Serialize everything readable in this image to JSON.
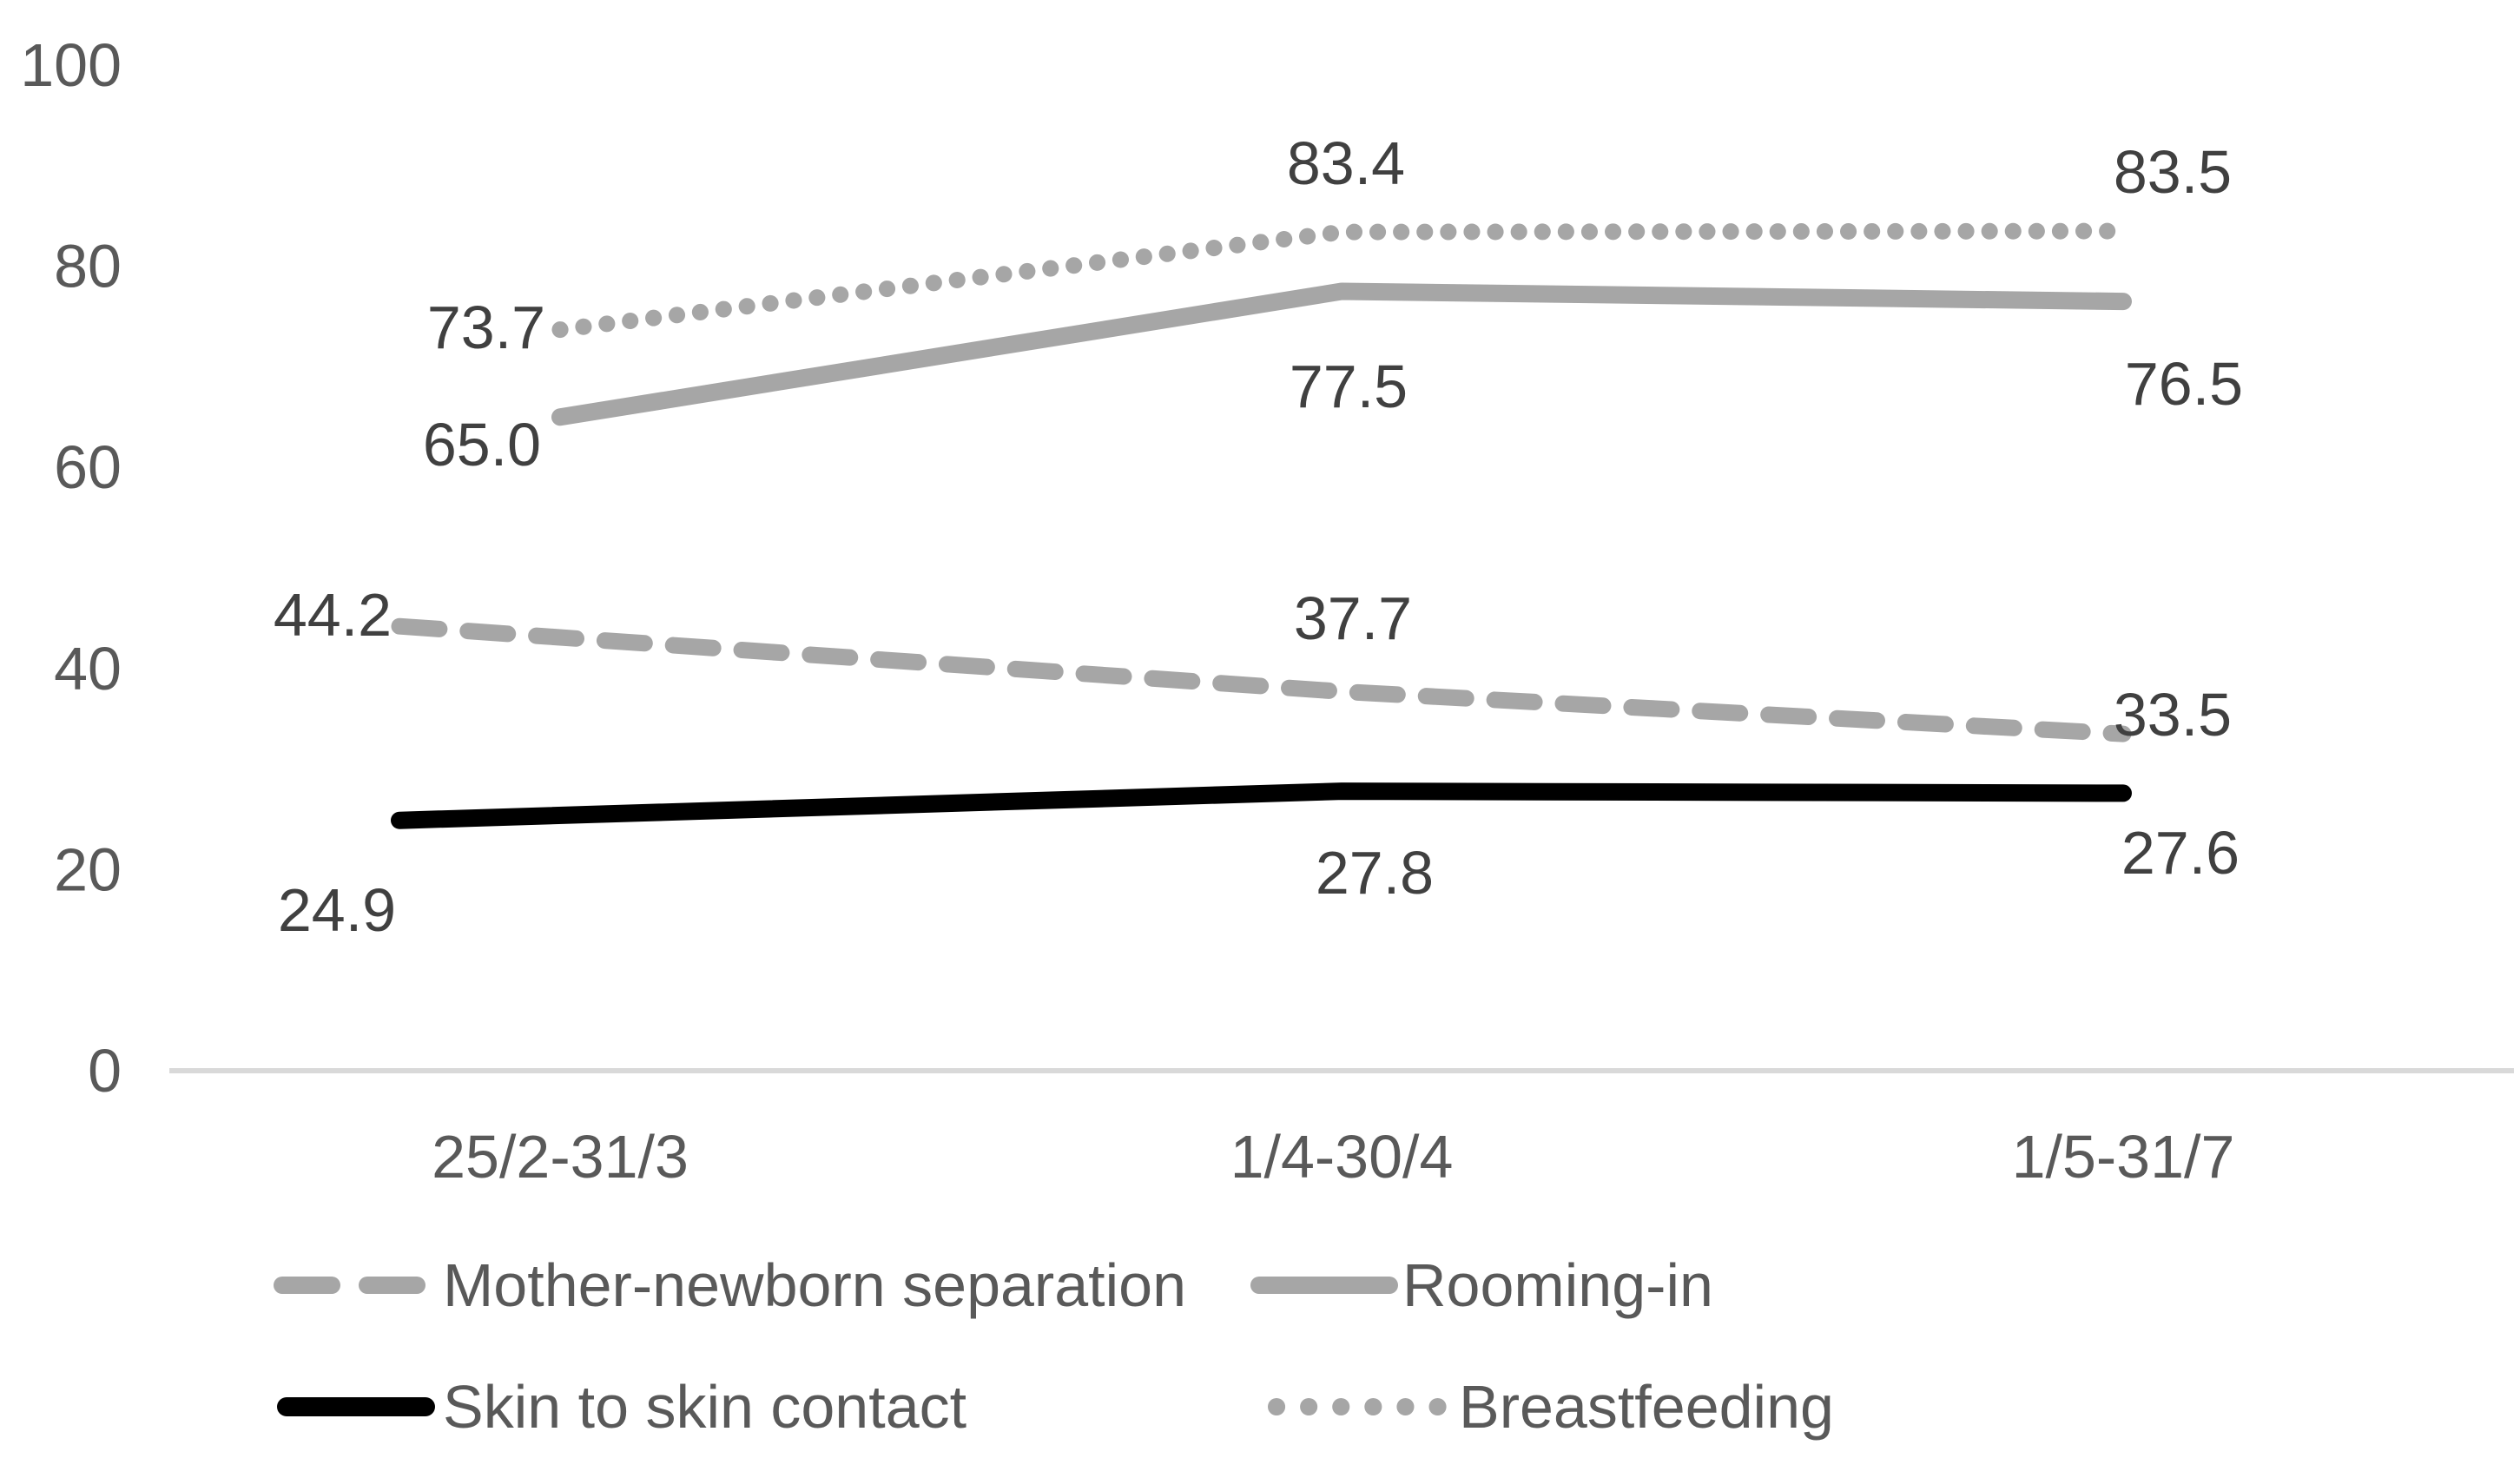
{
  "chart_data": {
    "type": "line",
    "title": "",
    "xlabel": "",
    "ylabel": "",
    "categories": [
      "25/2-31/3",
      "1/4-30/4",
      "1/5-31/7"
    ],
    "series": [
      {
        "name": "Mother-newborn separation",
        "values": [
          44.2,
          37.7,
          33.5
        ],
        "color": "#a6a6a6",
        "line_style": "dashed"
      },
      {
        "name": "Rooming-in",
        "values": [
          65.0,
          77.5,
          76.5
        ],
        "color": "#a6a6a6",
        "line_style": "solid"
      },
      {
        "name": "Skin to skin contact",
        "values": [
          24.9,
          27.8,
          27.6
        ],
        "color": "#000000",
        "line_style": "solid"
      },
      {
        "name": "Breastfeeding",
        "values": [
          73.7,
          83.4,
          83.5
        ],
        "color": "#a6a6a6",
        "line_style": "dotted"
      }
    ],
    "data_labels_shown": true,
    "data_label_decimals": 1,
    "y_ticks": [
      0,
      20,
      40,
      60,
      80,
      100
    ],
    "ylim": [
      0,
      100
    ],
    "grid": false,
    "legend_position": "bottom",
    "legend_rows": [
      [
        0,
        1
      ],
      [
        2,
        3
      ]
    ],
    "colors": {
      "axis_line": "#d9d9d9",
      "tick_text": "#595959",
      "data_label_text": "#404040",
      "legend_text": "#595959",
      "background": "#ffffff"
    }
  }
}
